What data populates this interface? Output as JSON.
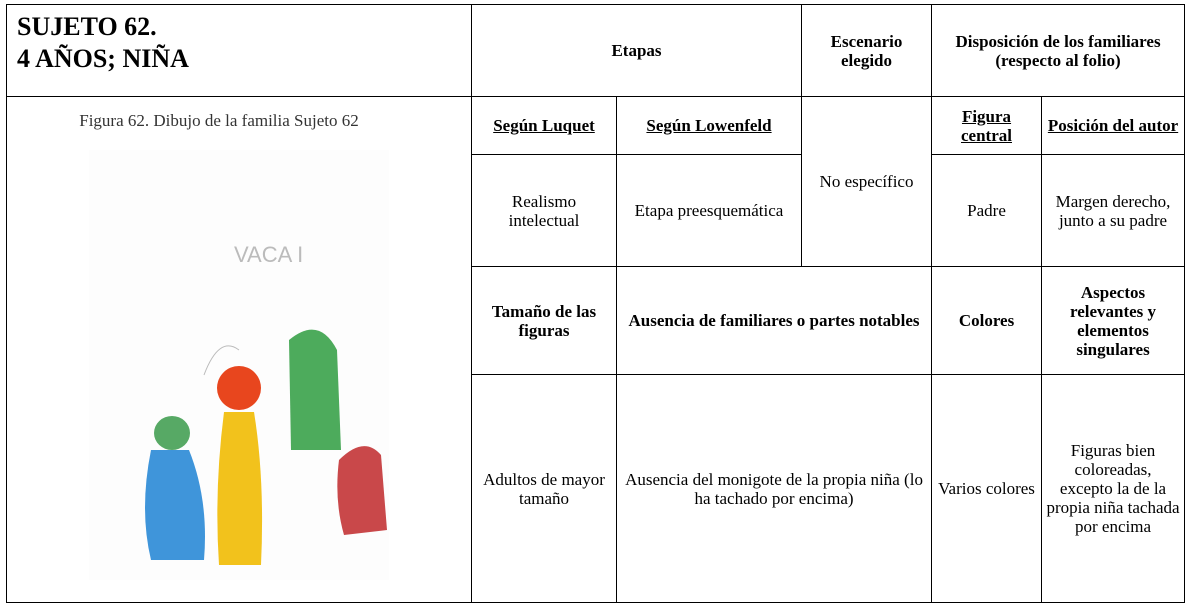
{
  "subject": {
    "title_line1": "SUJETO 62.",
    "title_line2": "4 AÑOS; NIÑA"
  },
  "figure": {
    "caption": "Figura 62. Dibujo de la familia Sujeto 62"
  },
  "table": {
    "header": {
      "stages": "Etapas",
      "scenario": "Escenario elegido",
      "arrangement": "Disposición de los familiares (respecto al folio)"
    },
    "subheader": {
      "luquet": "Según Luquet",
      "lowenfeld": "Según Lowenfeld",
      "central_figure": "Figura central",
      "author_position": "Posición del autor"
    },
    "row1": {
      "luquet": "Realismo intelectual",
      "lowenfeld": "Etapa preesquemática",
      "scenario": "No específico",
      "central_figure": "Padre",
      "author_position": "Margen derecho, junto a su padre"
    },
    "subheader2": {
      "size": "Tamaño de las figuras",
      "absence": "Ausencia de familiares o partes notables",
      "colors": "Colores",
      "aspects": "Aspectos relevantes y elementos singulares"
    },
    "row2": {
      "size": "Adultos de mayor tamaño",
      "absence": "Ausencia del monigote de la propia niña (lo ha tachado por encima)",
      "colors": "Varios colores",
      "aspects": "Figuras bien coloreadas, excepto la de la propia niña tachada por encima"
    }
  }
}
